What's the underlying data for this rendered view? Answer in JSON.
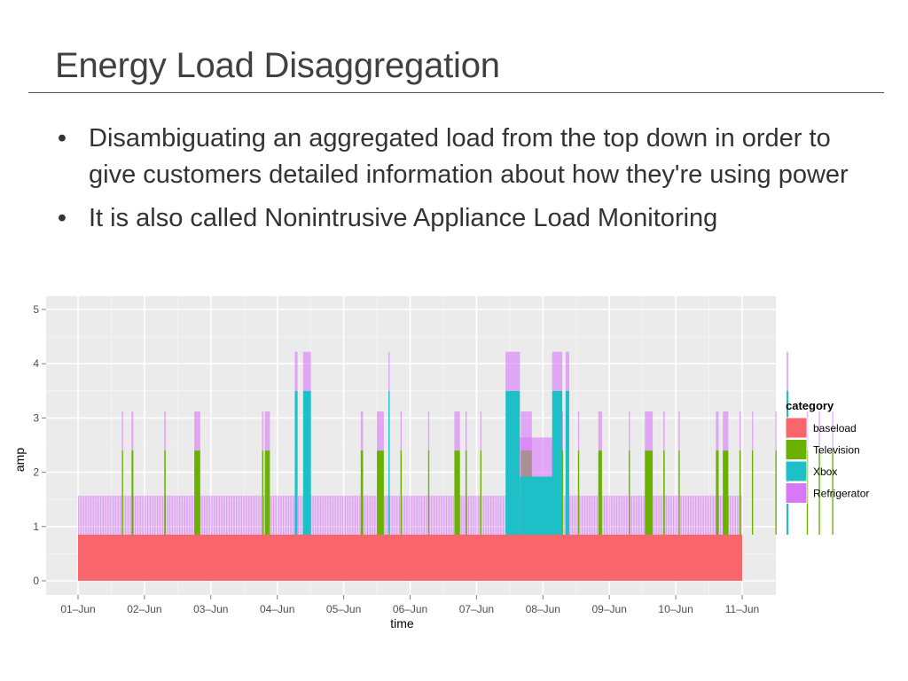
{
  "slide": {
    "title": "Energy Load Disaggregation",
    "bullet_symbol": "•",
    "bullets": [
      "Disambiguating an aggregated load from the top down in order to give customers detailed information about how they're using power",
      "It is also called Nonintrusive Appliance Load Monitoring"
    ]
  },
  "chart_data": {
    "type": "area",
    "stacked": true,
    "xlabel": "time",
    "ylabel": "amp",
    "ylim": [
      0,
      5.25
    ],
    "yticks": [
      0,
      1,
      2,
      3,
      4,
      5
    ],
    "xlim": [
      "2014-06-01",
      "2014-06-11"
    ],
    "xticks": [
      "2014-06-01",
      "2014-06-02",
      "2014-06-03",
      "2014-06-04",
      "2014-06-05",
      "2014-06-06",
      "2014-06-07",
      "2014-06-08",
      "2014-06-09",
      "2014-06-10",
      "2014-06-11"
    ],
    "xtick_labels": [
      "01–Jun",
      "02–Jun",
      "03–Jun",
      "04–Jun",
      "05–Jun",
      "06–Jun",
      "07–Jun",
      "08–Jun",
      "09–Jun",
      "10–Jun",
      "11–Jun"
    ],
    "grid": true,
    "legend": {
      "position": "right",
      "title": "category",
      "entries": [
        {
          "name": "baseload",
          "color": "#F8656B"
        },
        {
          "name": "Television",
          "color": "#6BB100"
        },
        {
          "name": "Xbox",
          "color": "#1CC0C6"
        },
        {
          "name": "Refrigerator",
          "color": "#D877F8"
        }
      ]
    },
    "series": [
      {
        "name": "baseload",
        "color": "#F8656B",
        "segments": [
          {
            "start": "2014-06-01",
            "end": "2014-06-11",
            "value": 0.85
          }
        ]
      },
      {
        "name": "Refrigerator",
        "color": "#D877F8",
        "cycle": {
          "start": "2014-06-01",
          "end": "2014-06-11",
          "on_amp": 0.72,
          "period_hours": 0.5,
          "duty": 0.45
        }
      },
      {
        "name": "Television",
        "color": "#6BB100",
        "segments": [
          {
            "start": "2014-06-01 15:50",
            "end": "2014-06-01 16:10",
            "value": 2.4
          },
          {
            "start": "2014-06-01 19:20",
            "end": "2014-06-01 20:00",
            "value": 2.4
          },
          {
            "start": "2014-06-02 07:10",
            "end": "2014-06-02 07:40",
            "value": 2.4
          },
          {
            "start": "2014-06-02 18:00",
            "end": "2014-06-02 20:10",
            "value": 2.4
          },
          {
            "start": "2014-06-03 18:30",
            "end": "2014-06-03 19:00",
            "value": 2.4
          },
          {
            "start": "2014-06-03 19:30",
            "end": "2014-06-03 21:20",
            "value": 2.4
          },
          {
            "start": "2014-06-05 06:10",
            "end": "2014-06-05 07:00",
            "value": 2.4
          },
          {
            "start": "2014-06-05 12:00",
            "end": "2014-06-05 14:30",
            "value": 2.4
          },
          {
            "start": "2014-06-05 20:30",
            "end": "2014-06-05 20:50",
            "value": 2.4
          },
          {
            "start": "2014-06-06 06:30",
            "end": "2014-06-06 06:50",
            "value": 2.4
          },
          {
            "start": "2014-06-06 16:00",
            "end": "2014-06-06 18:00",
            "value": 2.4
          },
          {
            "start": "2014-06-06 20:00",
            "end": "2014-06-06 20:30",
            "value": 2.4
          },
          {
            "start": "2014-06-07 01:20",
            "end": "2014-06-07 01:40",
            "value": 2.4
          },
          {
            "start": "2014-06-07 16:00",
            "end": "2014-06-07 20:00",
            "value": 2.4
          },
          {
            "start": "2014-06-08 06:50",
            "end": "2014-06-08 07:10",
            "value": 2.4
          },
          {
            "start": "2014-06-08 12:40",
            "end": "2014-06-08 13:00",
            "value": 2.4
          },
          {
            "start": "2014-06-08 20:00",
            "end": "2014-06-08 21:20",
            "value": 2.4
          },
          {
            "start": "2014-06-09 07:00",
            "end": "2014-06-09 07:20",
            "value": 2.4
          },
          {
            "start": "2014-06-09 12:50",
            "end": "2014-06-09 15:40",
            "value": 2.4
          },
          {
            "start": "2014-06-09 19:30",
            "end": "2014-06-09 20:00",
            "value": 2.4
          },
          {
            "start": "2014-06-10 01:00",
            "end": "2014-06-10 01:20",
            "value": 2.4
          },
          {
            "start": "2014-06-10 14:30",
            "end": "2014-06-10 15:30",
            "value": 2.4
          },
          {
            "start": "2014-06-10 17:00",
            "end": "2014-06-10 19:00",
            "value": 2.4
          },
          {
            "start": "2014-06-10 23:00",
            "end": "2014-06-10 23:30",
            "value": 2.4
          },
          {
            "start": "2014-06-11 03:30",
            "end": "2014-06-11 03:50",
            "value": 2.4
          },
          {
            "start": "2014-06-11 12:00",
            "end": "2014-06-11 12:20",
            "value": 2.4
          },
          {
            "start": "2014-06-11 23:20",
            "end": "2014-06-11 23:40",
            "value": 2.4
          },
          {
            "start": "2014-06-12 03:40",
            "end": "2014-06-12 04:00",
            "value": 2.4
          },
          {
            "start": "2014-06-12 08:30",
            "end": "2014-06-12 08:50",
            "value": 2.4
          }
        ]
      },
      {
        "name": "Xbox",
        "color": "#1CC0C6",
        "segments": [
          {
            "start": "2014-06-04 06:20",
            "end": "2014-06-04 07:20",
            "value": 3.5
          },
          {
            "start": "2014-06-04 09:20",
            "end": "2014-06-04 12:10",
            "value": 3.5
          },
          {
            "start": "2014-06-05 16:10",
            "end": "2014-06-05 16:30",
            "value": 3.5
          },
          {
            "start": "2014-06-07 10:30",
            "end": "2014-06-07 15:40",
            "value": 3.5
          },
          {
            "start": "2014-06-07 15:40",
            "end": "2014-06-08 04:40",
            "value": 1.92
          },
          {
            "start": "2014-06-08 03:20",
            "end": "2014-06-08 07:00",
            "value": 3.5
          },
          {
            "start": "2014-06-08 08:10",
            "end": "2014-06-08 09:30",
            "value": 3.5
          },
          {
            "start": "2014-06-11 16:00",
            "end": "2014-06-11 16:40",
            "value": 3.5
          }
        ]
      }
    ]
  }
}
